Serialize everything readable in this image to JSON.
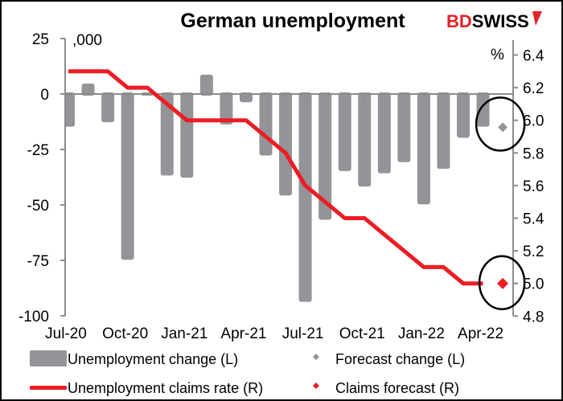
{
  "brand": {
    "logo_text_red": "BD",
    "logo_text_black": "SWISS",
    "color": "#e32228"
  },
  "chart_data": {
    "type": "bar+line",
    "title": "German unemployment",
    "left_axis": {
      "unit_label": ",000",
      "ticks": [
        25,
        0,
        -25,
        -50,
        -75,
        -100
      ],
      "range": [
        -100,
        25
      ]
    },
    "right_axis": {
      "unit_label": "%",
      "ticks": [
        6.4,
        6.2,
        6.0,
        5.8,
        5.6,
        5.4,
        5.2,
        5.0,
        4.8
      ],
      "range": [
        4.8,
        6.4
      ]
    },
    "x_tick_labels": [
      "Jul-20",
      "Oct-20",
      "Jan-21",
      "Apr-21",
      "Jul-21",
      "Oct-21",
      "Jan-22",
      "Apr-22"
    ],
    "categories": [
      "Jul-20",
      "Aug-20",
      "Sep-20",
      "Oct-20",
      "Nov-20",
      "Dec-20",
      "Jan-21",
      "Feb-21",
      "Mar-21",
      "Apr-21",
      "May-21",
      "Jun-21",
      "Jul-21",
      "Aug-21",
      "Sep-21",
      "Oct-21",
      "Nov-21",
      "Dec-21",
      "Jan-22",
      "Feb-22",
      "Mar-22",
      "Apr-22",
      "May-22"
    ],
    "series": [
      {
        "name": "Unemployment change (L)",
        "type": "bar",
        "axis": "left",
        "color": "#929497",
        "values": [
          -14,
          4,
          -12,
          -74,
          0,
          -36,
          -37,
          8,
          -13,
          -3,
          -27,
          -45,
          -93,
          -56,
          -34,
          -41,
          -35,
          -30,
          -49,
          -33,
          -19,
          -14,
          null
        ]
      },
      {
        "name": "Forecast change (L)",
        "type": "marker",
        "axis": "left",
        "color": "#929497",
        "values": [
          null,
          null,
          null,
          null,
          null,
          null,
          null,
          null,
          null,
          null,
          null,
          null,
          null,
          null,
          null,
          null,
          null,
          null,
          null,
          null,
          null,
          null,
          -15
        ]
      },
      {
        "name": "Unemployment claims rate (R)",
        "type": "line",
        "axis": "right",
        "color": "#ed1c24",
        "values": [
          6.3,
          6.3,
          6.3,
          6.2,
          6.2,
          6.1,
          6.0,
          6.0,
          6.0,
          6.0,
          5.9,
          5.8,
          5.6,
          5.5,
          5.4,
          5.4,
          5.3,
          5.2,
          5.1,
          5.1,
          5.0,
          5.0,
          null
        ]
      },
      {
        "name": "Claims forecast (R)",
        "type": "marker",
        "axis": "right",
        "color": "#ed1c24",
        "values": [
          null,
          null,
          null,
          null,
          null,
          null,
          null,
          null,
          null,
          null,
          null,
          null,
          null,
          null,
          null,
          null,
          null,
          null,
          null,
          null,
          null,
          null,
          5.0
        ]
      }
    ],
    "annotations": [
      "circle around forecast change",
      "circle around claims forecast"
    ],
    "grid": false,
    "legend_placement": "bottom"
  }
}
